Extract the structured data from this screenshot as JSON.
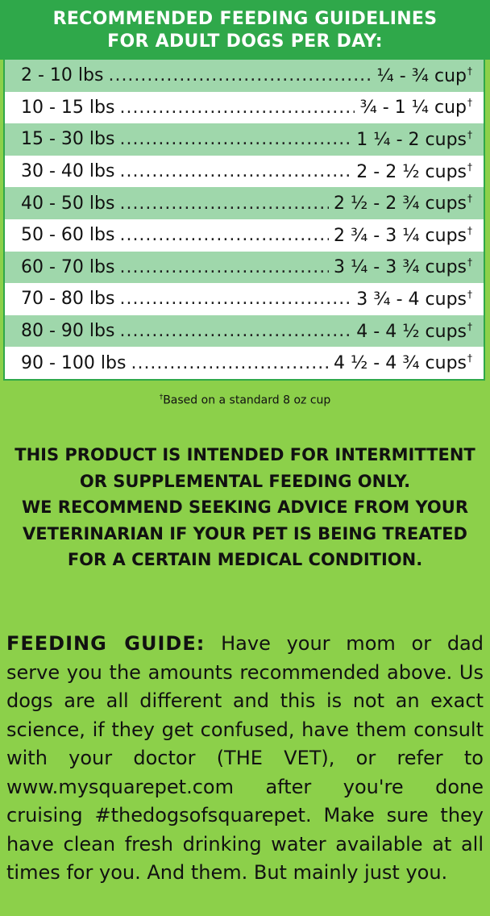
{
  "header": {
    "line1": "RECOMMENDED FEEDING GUIDELINES",
    "line2": "FOR ADULT DOGS PER DAY:"
  },
  "rows": [
    {
      "weight": "2 - 10 lbs",
      "amount": "¼ - ¾ cup",
      "mark": "†"
    },
    {
      "weight": "10 - 15 lbs",
      "amount": "¾ - 1 ¼ cup",
      "mark": "†"
    },
    {
      "weight": "15 - 30 lbs",
      "amount": "1 ¼ - 2 cups",
      "mark": "†"
    },
    {
      "weight": "30 - 40 lbs",
      "amount": "2 - 2 ½ cups",
      "mark": "†"
    },
    {
      "weight": "40 - 50 lbs",
      "amount": "2 ½ - 2 ¾ cups",
      "mark": "†"
    },
    {
      "weight": "50 - 60 lbs",
      "amount": "2 ¾ - 3 ¼ cups",
      "mark": "†"
    },
    {
      "weight": "60 - 70 lbs",
      "amount": "3 ¼ - 3 ¾ cups",
      "mark": "†"
    },
    {
      "weight": "70 - 80 lbs",
      "amount": "3 ¾ - 4 cups",
      "mark": "†"
    },
    {
      "weight": "80 - 90 lbs",
      "amount": "4 - 4 ½ cups",
      "mark": "†"
    },
    {
      "weight": "90 - 100 lbs",
      "amount": "4 ½ - 4 ¾ cups",
      "mark": "†"
    }
  ],
  "footnote": {
    "mark": "†",
    "text": "Based on a standard 8 oz cup"
  },
  "warning": {
    "line1": "THIS PRODUCT IS INTENDED FOR INTERMITTENT",
    "line2": "OR SUPPLEMENTAL FEEDING ONLY.",
    "line3": "WE RECOMMEND SEEKING ADVICE FROM YOUR",
    "line4": "VETERINARIAN IF YOUR PET IS BEING TREATED",
    "line5": "FOR A CERTAIN MEDICAL CONDITION."
  },
  "guide": {
    "label": "FEEDING GUIDE:",
    "text": "Have your mom or dad serve you the amounts recommended above. Us dogs are all different and this is not an exact science, if they get confused, have them consult with your doctor (THE VET), or refer to www.mysquarepet.com after you're done cruising #thedogsofsquarepet. Make sure they have clean fresh drinking water available at all times for you. And them. But mainly just you."
  },
  "colors": {
    "background": "#8cd04a",
    "header": "#2fa84a",
    "alt_row": "#9fd7ab",
    "white_row": "#ffffff"
  }
}
